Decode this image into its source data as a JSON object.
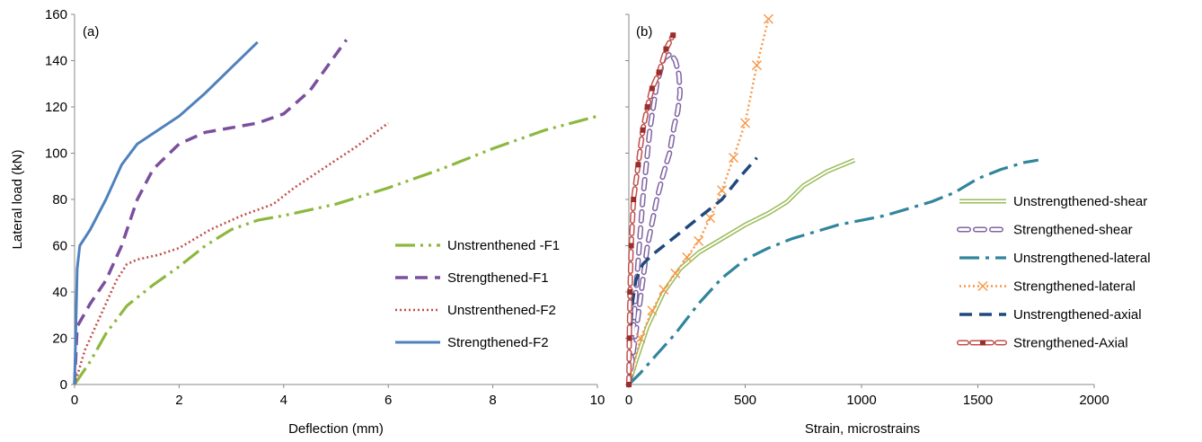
{
  "chart_data": [
    {
      "type": "line",
      "panel_label": "(a)",
      "title": "",
      "xlabel": "Deflection (mm)",
      "ylabel": "Lateral load (kN)",
      "xlim": [
        0,
        10
      ],
      "ylim": [
        0,
        160
      ],
      "xticks": [
        0,
        2,
        4,
        6,
        8,
        10
      ],
      "yticks": [
        0,
        20,
        40,
        60,
        80,
        100,
        120,
        140,
        160
      ],
      "grid": false,
      "legend_position": "right",
      "series": [
        {
          "name": "Unstrenthened -F1",
          "color": "#8DB83F",
          "style": "longdash-dot-dot",
          "x": [
            0,
            0.3,
            0.6,
            1.0,
            1.5,
            2.0,
            2.5,
            3.0,
            3.5,
            4.0,
            5.0,
            6.0,
            7.0,
            8.0,
            9.0,
            10.0
          ],
          "y": [
            0,
            10,
            22,
            34,
            43,
            51,
            60,
            67,
            71,
            73,
            78,
            85,
            93,
            102,
            110,
            116
          ]
        },
        {
          "name": "Strengthened-F1",
          "color": "#7B4F9E",
          "style": "dash",
          "x": [
            0,
            0.05,
            0.3,
            0.6,
            0.9,
            1.2,
            1.5,
            2.0,
            2.5,
            3.0,
            3.5,
            4.0,
            4.5,
            5.2
          ],
          "y": [
            0,
            25,
            35,
            45,
            60,
            80,
            93,
            104,
            109,
            111,
            113,
            117,
            127,
            149
          ]
        },
        {
          "name": "Unstrenthened-F2",
          "color": "#C0504D",
          "style": "dot",
          "x": [
            0,
            0.2,
            0.5,
            0.8,
            1.0,
            1.2,
            1.6,
            2.0,
            2.6,
            3.2,
            3.8,
            4.2,
            4.8,
            5.4,
            6.0
          ],
          "y": [
            0,
            15,
            30,
            45,
            52,
            54,
            56,
            59,
            67,
            73,
            78,
            85,
            94,
            103,
            113
          ]
        },
        {
          "name": "Strengthened-F2",
          "color": "#4F81BD",
          "style": "solid",
          "x": [
            0,
            0.05,
            0.1,
            0.3,
            0.6,
            0.9,
            1.2,
            1.6,
            2.0,
            2.5,
            3.0,
            3.5
          ],
          "y": [
            0,
            50,
            60,
            67,
            80,
            95,
            104,
            110,
            116,
            126,
            137,
            148
          ]
        }
      ]
    },
    {
      "type": "line",
      "panel_label": "(b)",
      "title": "",
      "xlabel": "Strain, microstrains",
      "ylabel": "",
      "xlim": [
        0,
        2000
      ],
      "ylim": [
        0,
        160
      ],
      "xticks": [
        0,
        500,
        1000,
        1500,
        2000
      ],
      "grid": false,
      "legend_position": "right",
      "series": [
        {
          "name": "Unstrengthened-shear",
          "color": "#9BBB59",
          "style": "double-line",
          "x": [
            0,
            30,
            80,
            150,
            220,
            300,
            400,
            500,
            600,
            680,
            750,
            850,
            970
          ],
          "y": [
            0,
            10,
            25,
            40,
            50,
            57,
            63,
            69,
            74,
            79,
            86,
            92,
            97
          ]
        },
        {
          "name": "Strengthened-shear",
          "color": "#8064A2",
          "style": "oval-dash",
          "x": [
            0,
            20,
            40,
            60,
            80,
            100,
            120,
            140,
            160,
            175,
            185,
            195,
            210,
            220,
            215,
            200,
            180,
            150,
            120,
            90,
            60,
            30,
            10
          ],
          "y": [
            0,
            15,
            30,
            45,
            60,
            70,
            80,
            88,
            95,
            100,
            106,
            112,
            118,
            126,
            134,
            140,
            143,
            141,
            130,
            110,
            80,
            40,
            10
          ]
        },
        {
          "name": "Unstrengthened-lateral",
          "color": "#31859C",
          "style": "longdash-dot",
          "x": [
            0,
            50,
            120,
            200,
            300,
            400,
            500,
            600,
            700,
            800,
            900,
            1000,
            1100,
            1200,
            1300,
            1400,
            1500,
            1600,
            1700,
            1760
          ],
          "y": [
            0,
            5,
            13,
            22,
            35,
            46,
            54,
            59,
            63,
            66,
            69,
            71,
            73,
            76,
            79,
            83,
            89,
            93,
            96,
            97
          ]
        },
        {
          "name": "Strengthened-lateral",
          "color": "#F79646",
          "style": "dot-cross",
          "x": [
            0,
            50,
            100,
            150,
            200,
            250,
            300,
            350,
            400,
            450,
            500,
            550,
            600
          ],
          "y": [
            0,
            20,
            32,
            41,
            48,
            55,
            62,
            72,
            84,
            98,
            113,
            138,
            158
          ]
        },
        {
          "name": "Unstrengthened-axial",
          "color": "#1F497D",
          "style": "dash",
          "x": [
            0,
            5,
            15,
            30,
            60,
            100,
            150,
            200,
            300,
            400,
            480,
            550
          ],
          "y": [
            0,
            20,
            35,
            45,
            52,
            56,
            60,
            64,
            72,
            80,
            90,
            98
          ]
        },
        {
          "name": "Strengthened-Axial",
          "color": "#C0504D",
          "style": "oval-square",
          "x": [
            0,
            2,
            5,
            10,
            20,
            40,
            60,
            80,
            100,
            130,
            160,
            190
          ],
          "y": [
            0,
            20,
            40,
            60,
            80,
            95,
            110,
            120,
            128,
            135,
            145,
            151
          ]
        }
      ]
    }
  ]
}
